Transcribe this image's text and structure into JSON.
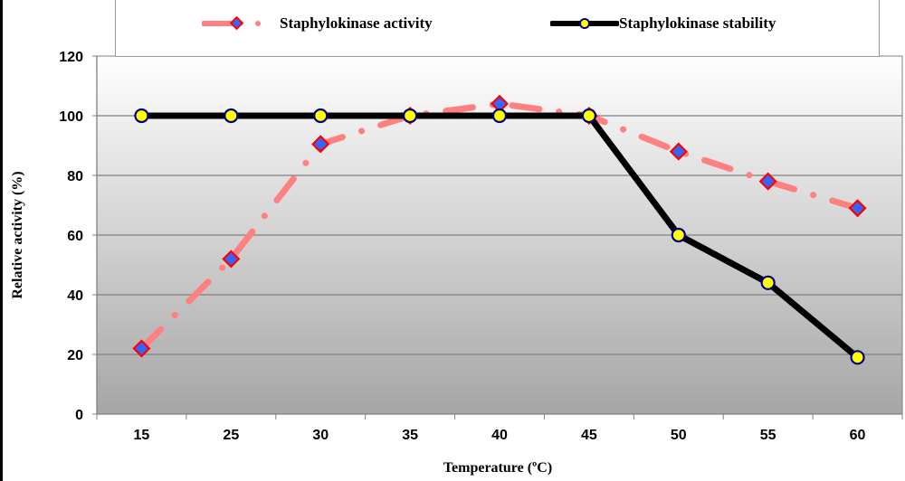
{
  "chart_data": {
    "type": "line",
    "title": "",
    "xlabel": "Temperature (ºC)",
    "ylabel": "Relative activity (%)",
    "categories": [
      "15",
      "25",
      "30",
      "35",
      "40",
      "45",
      "50",
      "55",
      "60"
    ],
    "ylim": [
      0,
      120
    ],
    "yticks": [
      0,
      20,
      40,
      60,
      80,
      100,
      120
    ],
    "grid": true,
    "legend_position": "top",
    "series": [
      {
        "name": "Staphylokinase activity",
        "values": [
          22,
          52,
          90.5,
          100,
          104,
          100,
          88,
          78,
          69
        ],
        "line_color": "#ff8080",
        "line_style": "dash-dot",
        "marker": "diamond",
        "marker_fill": "#3366ff",
        "marker_edge": "#ff0000"
      },
      {
        "name": "Staphylokinase stability",
        "values": [
          100,
          100,
          100,
          100,
          100,
          100,
          60,
          44,
          19
        ],
        "line_color": "#000000",
        "line_style": "solid",
        "marker": "circle",
        "marker_fill": "#ffff00",
        "marker_edge": "#000080"
      }
    ]
  }
}
